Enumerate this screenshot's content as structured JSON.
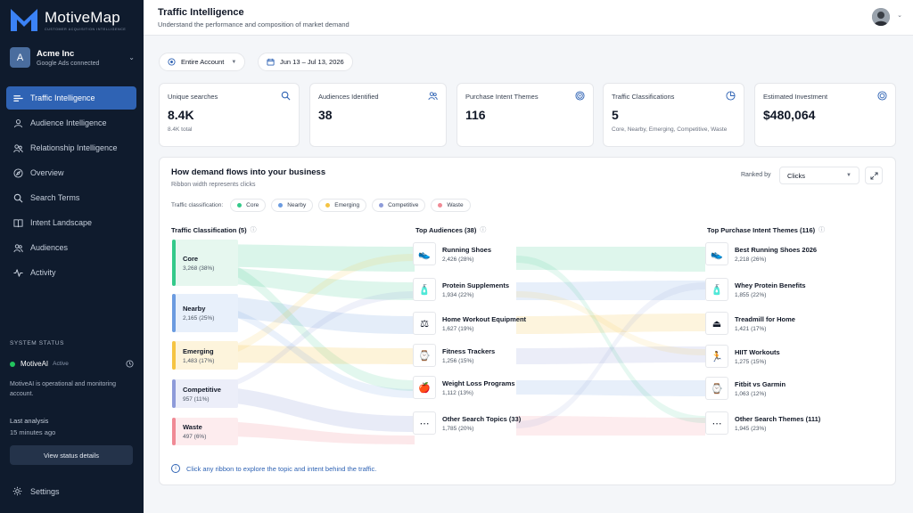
{
  "app": {
    "name": "MotiveMap",
    "tagline": "CUSTOMER ACQUISITION INTELLIGENCE",
    "accent": "#2f63b4"
  },
  "account": {
    "initial": "A",
    "name": "Acme Inc",
    "sub": "Google Ads connected"
  },
  "nav": [
    {
      "label": "Traffic Intelligence",
      "icon": "traffic-icon",
      "active": true
    },
    {
      "label": "Audience Intelligence",
      "icon": "audience-icon"
    },
    {
      "label": "Relationship Intelligence",
      "icon": "relationship-icon"
    },
    {
      "label": "Overview",
      "icon": "compass-icon"
    },
    {
      "label": "Search Terms",
      "icon": "search-icon"
    },
    {
      "label": "Intent Landscape",
      "icon": "book-icon"
    },
    {
      "label": "Audiences",
      "icon": "users-icon"
    },
    {
      "label": "Activity",
      "icon": "activity-icon"
    }
  ],
  "system": {
    "label": "SYSTEM STATUS",
    "name": "MotiveAI",
    "status": "Active",
    "desc": "MotiveAI is operational and monitoring account.",
    "last_label": "Last analysis",
    "last_value": "15 minutes ago",
    "button": "View status details",
    "status_color": "#22c55e"
  },
  "settings_label": "Settings",
  "header": {
    "title": "Traffic Intelligence",
    "subtitle": "Understand the performance and composition of market demand"
  },
  "filters": {
    "account": "Entire Account",
    "dates": "Jun 13 – Jul 13, 2026"
  },
  "kpis": [
    {
      "label": "Unique searches",
      "value": "8.4K",
      "sub": "8.4K total",
      "icon": "search-icon"
    },
    {
      "label": "Audiences Identified",
      "value": "38",
      "sub": "",
      "icon": "users-icon"
    },
    {
      "label": "Purchase Intent Themes",
      "value": "116",
      "sub": "",
      "icon": "target-icon"
    },
    {
      "label": "Traffic Classifications",
      "value": "5",
      "sub": "Core, Nearby, Emerging, Competitive, Waste",
      "icon": "pie-icon"
    },
    {
      "label": "Estimated Investment",
      "value": "$480,064",
      "sub": "",
      "icon": "coin-icon"
    }
  ],
  "flow": {
    "title": "How demand flows into your business",
    "subtitle": "Ribbon width represents clicks",
    "rank_label": "Ranked by",
    "rank_value": "Clicks",
    "legend_label": "Traffic classification:",
    "legend": [
      {
        "name": "Core",
        "color": "#34c98a"
      },
      {
        "name": "Nearby",
        "color": "#6b9be0"
      },
      {
        "name": "Emerging",
        "color": "#f5c443"
      },
      {
        "name": "Competitive",
        "color": "#8e9bd9"
      },
      {
        "name": "Waste",
        "color": "#f08a95"
      }
    ],
    "col1_title": "Traffic Classification (5)",
    "col2_title": "Top Audiences (38)",
    "col3_title": "Top Purchase Intent Themes (116)",
    "classifications": [
      {
        "name": "Core",
        "value": "3,268 (38%)",
        "color": "#34c98a",
        "bg": "#e6f7ef"
      },
      {
        "name": "Nearby",
        "value": "2,165 (25%)",
        "color": "#6b9be0",
        "bg": "#e8f0fb"
      },
      {
        "name": "Emerging",
        "value": "1,483 (17%)",
        "color": "#f5c443",
        "bg": "#fdf4dc"
      },
      {
        "name": "Competitive",
        "value": "957 (11%)",
        "color": "#8e9bd9",
        "bg": "#eceef9"
      },
      {
        "name": "Waste",
        "value": "497 (6%)",
        "color": "#f08a95",
        "bg": "#fdecee"
      }
    ],
    "audiences": [
      {
        "name": "Running Shoes",
        "value": "2,426 (28%)",
        "icon": "shoe-icon",
        "glyph": "👟"
      },
      {
        "name": "Protein Supplements",
        "value": "1,934 (22%)",
        "icon": "supplement-icon",
        "glyph": "🧴"
      },
      {
        "name": "Home Workout Equipment",
        "value": "1,627 (19%)",
        "icon": "dumbbell-icon",
        "glyph": "⚖"
      },
      {
        "name": "Fitness Trackers",
        "value": "1,256 (15%)",
        "icon": "watch-icon",
        "glyph": "⌚"
      },
      {
        "name": "Weight Loss Programs",
        "value": "1,112 (13%)",
        "icon": "apple-icon",
        "glyph": "🍎"
      },
      {
        "name": "Other Search Topics (33)",
        "value": "1,785 (20%)",
        "icon": "more-icon",
        "glyph": "⋯"
      }
    ],
    "themes": [
      {
        "name": "Best Running Shoes 2026",
        "value": "2,218 (26%)",
        "icon": "shoe-icon",
        "glyph": "👟"
      },
      {
        "name": "Whey Protein Benefits",
        "value": "1,855 (22%)",
        "icon": "supplement-icon",
        "glyph": "🧴"
      },
      {
        "name": "Treadmill for Home",
        "value": "1,421 (17%)",
        "icon": "treadmill-icon",
        "glyph": "⏏"
      },
      {
        "name": "HIIT Workouts",
        "value": "1,275 (15%)",
        "icon": "runner-icon",
        "glyph": "🏃"
      },
      {
        "name": "Fitbit vs Garmin",
        "value": "1,063 (12%)",
        "icon": "watch-icon",
        "glyph": "⌚"
      },
      {
        "name": "Other Search Themes (111)",
        "value": "1,945 (23%)",
        "icon": "more-icon",
        "glyph": "⋯"
      }
    ],
    "footnote": "Click any ribbon to explore the topic and intent behind the traffic."
  }
}
